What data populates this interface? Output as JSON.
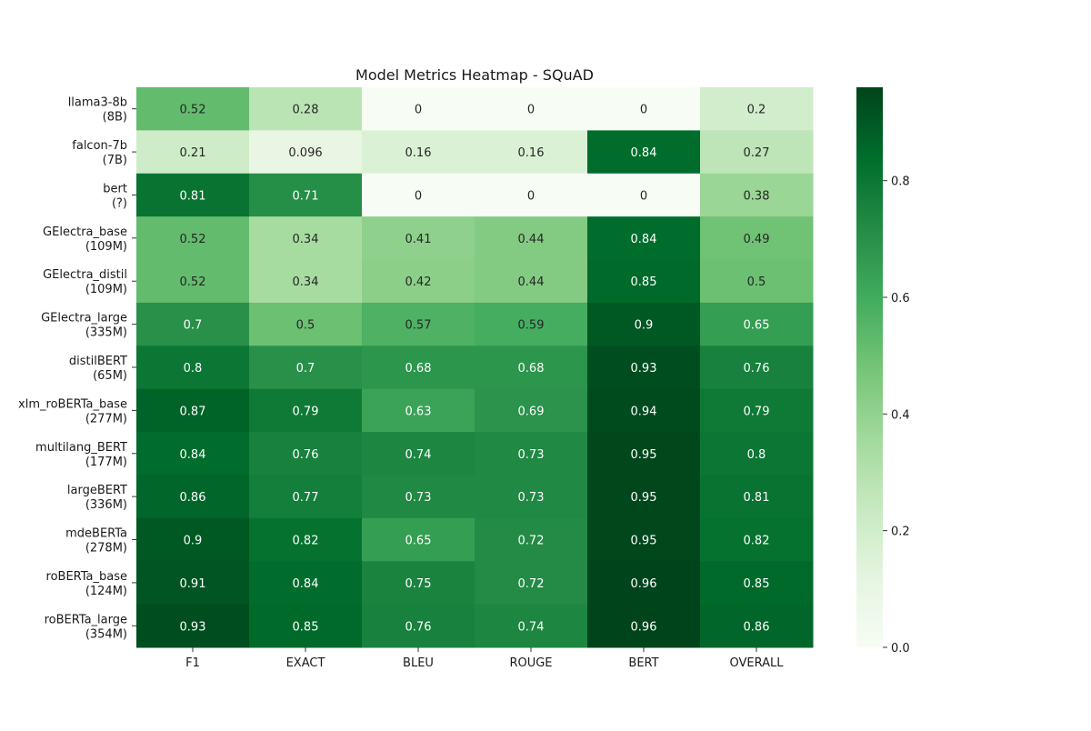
{
  "chart_data": {
    "type": "heatmap",
    "title": "Model Metrics Heatmap - SQuAD",
    "columns": [
      "F1",
      "EXACT",
      "BLEU",
      "ROUGE",
      "BERT",
      "OVERALL"
    ],
    "rows": [
      {
        "label": [
          "llama3-8b",
          "(8B)"
        ],
        "values": [
          "0.52",
          "0.28",
          "0",
          "0",
          "0",
          "0.2"
        ]
      },
      {
        "label": [
          "falcon-7b",
          "(7B)"
        ],
        "values": [
          "0.21",
          "0.096",
          "0.16",
          "0.16",
          "0.84",
          "0.27"
        ]
      },
      {
        "label": [
          "bert",
          "(?)"
        ],
        "values": [
          "0.81",
          "0.71",
          "0",
          "0",
          "0",
          "0.38"
        ]
      },
      {
        "label": [
          "GElectra_base",
          "(109M)"
        ],
        "values": [
          "0.52",
          "0.34",
          "0.41",
          "0.44",
          "0.84",
          "0.49"
        ]
      },
      {
        "label": [
          "GElectra_distil",
          "(109M)"
        ],
        "values": [
          "0.52",
          "0.34",
          "0.42",
          "0.44",
          "0.85",
          "0.5"
        ]
      },
      {
        "label": [
          "GElectra_large",
          "(335M)"
        ],
        "values": [
          "0.7",
          "0.5",
          "0.57",
          "0.59",
          "0.9",
          "0.65"
        ]
      },
      {
        "label": [
          "distilBERT",
          "(65M)"
        ],
        "values": [
          "0.8",
          "0.7",
          "0.68",
          "0.68",
          "0.93",
          "0.76"
        ]
      },
      {
        "label": [
          "xlm_roBERTa_base",
          "(277M)"
        ],
        "values": [
          "0.87",
          "0.79",
          "0.63",
          "0.69",
          "0.94",
          "0.79"
        ]
      },
      {
        "label": [
          "multilang_BERT",
          "(177M)"
        ],
        "values": [
          "0.84",
          "0.76",
          "0.74",
          "0.73",
          "0.95",
          "0.8"
        ]
      },
      {
        "label": [
          "largeBERT",
          "(336M)"
        ],
        "values": [
          "0.86",
          "0.77",
          "0.73",
          "0.73",
          "0.95",
          "0.81"
        ]
      },
      {
        "label": [
          "mdeBERTa",
          "(278M)"
        ],
        "values": [
          "0.9",
          "0.82",
          "0.65",
          "0.72",
          "0.95",
          "0.82"
        ]
      },
      {
        "label": [
          "roBERTa_base",
          "(124M)"
        ],
        "values": [
          "0.91",
          "0.84",
          "0.75",
          "0.72",
          "0.96",
          "0.85"
        ]
      },
      {
        "label": [
          "roBERTa_large",
          "(354M)"
        ],
        "values": [
          "0.93",
          "0.85",
          "0.76",
          "0.74",
          "0.96",
          "0.86"
        ]
      }
    ],
    "colorbar": {
      "colormap": "Greens",
      "range": [
        0,
        0.96
      ],
      "ticks": [
        "0.0",
        "0.2",
        "0.4",
        "0.6",
        "0.8"
      ]
    }
  }
}
